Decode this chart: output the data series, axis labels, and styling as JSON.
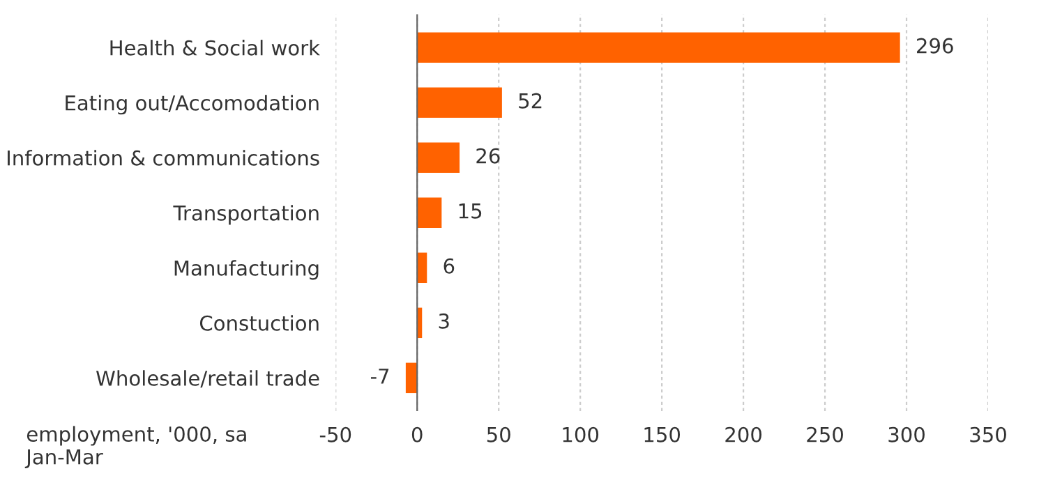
{
  "chart_data": {
    "type": "bar",
    "orientation": "horizontal",
    "categories": [
      "Health & Social work",
      "Eating out/Accomodation",
      "Information & communications",
      "Transportation",
      "Manufacturing",
      "Constuction",
      "Wholesale/retail trade"
    ],
    "values": [
      296,
      52,
      26,
      15,
      6,
      3,
      -7
    ],
    "color": "#ff6200",
    "data_labels": true,
    "xlim": [
      -50,
      350
    ],
    "xticks": [
      -50,
      0,
      50,
      100,
      150,
      200,
      250,
      300,
      350
    ],
    "grid": "x",
    "annotations": [
      "employment, '000, sa\nJan-Mar"
    ]
  }
}
